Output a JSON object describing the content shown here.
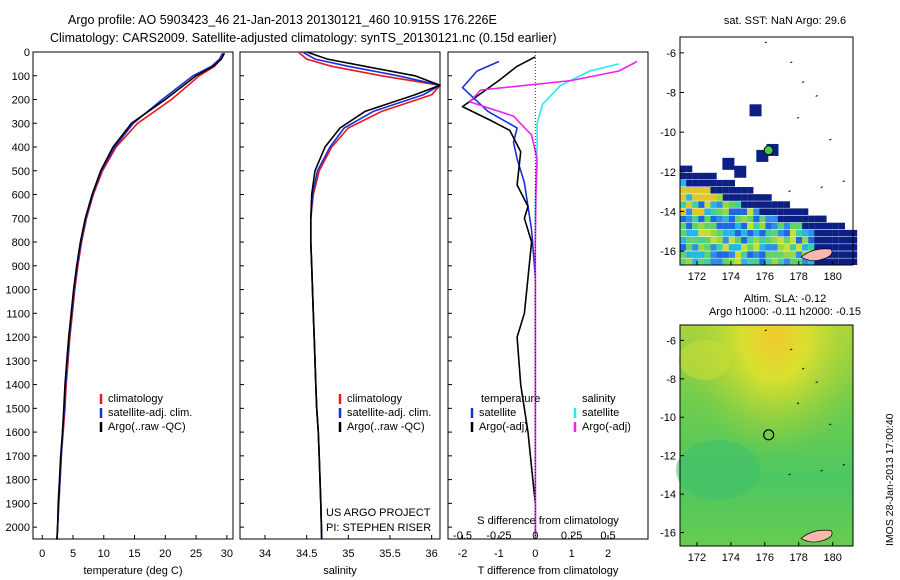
{
  "header": {
    "line1": "Argo profile: AO 5903423_46 21-Jan-2013 20130121_460 10.915S 176.226E",
    "line2": "Climatology: CARS2009. Satellite-adjusted climatology: synTS_20130121.nc (0.15d earlier)"
  },
  "colors": {
    "climatology": "#e8181e",
    "satellite": "#1c2fd6",
    "argo": "#000000",
    "sat_salinity": "#2ee6ee",
    "argo_salinity_adj": "#ee22ee"
  },
  "depth_ticks": [
    "0",
    "100",
    "200",
    "300",
    "400",
    "500",
    "600",
    "700",
    "800",
    "900",
    "1000",
    "1100",
    "1200",
    "1300",
    "1400",
    "1500",
    "1600",
    "1700",
    "1800",
    "1900",
    "2000"
  ],
  "chart_data": [
    {
      "type": "line",
      "xlabel": "temperature (deg C)",
      "xlim": [
        -1.5,
        31
      ],
      "ylim": [
        2050,
        0
      ],
      "xticks": [
        "0",
        "5",
        "10",
        "15",
        "20",
        "25",
        "30"
      ],
      "legend": [
        "climatology",
        "satellite-adj. clim.",
        "Argo(..raw -QC)"
      ],
      "series": [
        {
          "name": "climatology",
          "color": "climatology",
          "x": [
            29.5,
            29.0,
            28.0,
            25.5,
            21.0,
            15.5,
            12.0,
            9.8,
            8.3,
            7.2,
            6.4,
            5.8,
            5.3,
            4.9,
            4.5,
            4.2,
            3.9,
            3.7,
            3.4,
            3.1,
            2.9,
            2.7,
            2.5,
            2.4,
            2.3,
            2.3
          ],
          "y": [
            5,
            30,
            60,
            100,
            200,
            300,
            400,
            500,
            600,
            700,
            800,
            900,
            1000,
            1100,
            1200,
            1300,
            1400,
            1500,
            1600,
            1700,
            1800,
            1900,
            2000,
            2050,
            2060,
            2080
          ]
        },
        {
          "name": "satellite-adj. clim.",
          "color": "satellite",
          "x": [
            29.3,
            28.8,
            27.5,
            24.5,
            19.5,
            14.8,
            11.8,
            9.6,
            8.2,
            7.1,
            6.3,
            5.7,
            5.2,
            4.8,
            4.4,
            4.1,
            3.8,
            3.6,
            3.3,
            3.1,
            2.9,
            2.7,
            2.5,
            2.4,
            2.3
          ],
          "y": [
            5,
            30,
            60,
            100,
            200,
            300,
            400,
            500,
            600,
            700,
            800,
            900,
            1000,
            1100,
            1200,
            1300,
            1400,
            1500,
            1600,
            1700,
            1800,
            1900,
            2000,
            2050,
            2080
          ]
        },
        {
          "name": "Argo(..raw -QC)",
          "color": "argo",
          "x": [
            29.6,
            29.1,
            27.8,
            25.0,
            20.0,
            14.5,
            11.5,
            9.5,
            8.1,
            7.0,
            6.2,
            5.6,
            5.1,
            4.7,
            4.3,
            4.0,
            3.7,
            3.5,
            3.3,
            3.0,
            2.8,
            2.6,
            2.5,
            2.4,
            2.3
          ],
          "y": [
            5,
            30,
            60,
            100,
            200,
            300,
            400,
            500,
            600,
            700,
            800,
            900,
            1000,
            1100,
            1200,
            1300,
            1400,
            1500,
            1600,
            1700,
            1800,
            1900,
            2000,
            2050,
            2080
          ]
        }
      ]
    },
    {
      "type": "line",
      "xlabel": "salinity",
      "xlim": [
        33.7,
        36.1
      ],
      "ylim": [
        2050,
        0
      ],
      "xticks": [
        "34",
        "34.5",
        "35",
        "35.5",
        "36"
      ],
      "legend": [
        "climatology",
        "satellite-adj. clim.",
        "Argo(..raw -QC)"
      ],
      "annotations": [
        "US ARGO PROJECT",
        "PI: STEPHEN RISER"
      ],
      "series": [
        {
          "name": "climatology",
          "color": "climatology",
          "x": [
            34.4,
            34.5,
            34.8,
            35.4,
            36.1,
            36.0,
            35.4,
            35.0,
            34.8,
            34.65,
            34.58,
            34.55,
            34.55,
            34.56,
            34.57,
            34.58,
            34.59,
            34.6,
            34.61,
            34.62,
            34.64,
            34.65,
            34.66,
            34.67,
            34.68
          ],
          "y": [
            0,
            30,
            60,
            100,
            140,
            180,
            250,
            320,
            400,
            500,
            600,
            700,
            800,
            900,
            1000,
            1100,
            1200,
            1300,
            1400,
            1500,
            1600,
            1700,
            1800,
            1900,
            2080
          ]
        },
        {
          "name": "satellite-adj. clim.",
          "color": "satellite",
          "x": [
            34.45,
            34.6,
            35.0,
            35.6,
            36.1,
            35.9,
            35.3,
            34.95,
            34.78,
            34.63,
            34.57,
            34.55,
            34.55,
            34.56,
            34.57,
            34.58,
            34.59,
            34.6,
            34.61,
            34.62,
            34.64,
            34.65,
            34.66,
            34.67,
            34.68
          ],
          "y": [
            0,
            30,
            60,
            100,
            140,
            180,
            250,
            320,
            400,
            500,
            600,
            700,
            800,
            900,
            1000,
            1100,
            1200,
            1300,
            1400,
            1500,
            1600,
            1700,
            1800,
            1900,
            2080
          ]
        },
        {
          "name": "Argo(..raw -QC)",
          "color": "argo",
          "x": [
            34.5,
            34.75,
            35.2,
            35.8,
            36.1,
            35.8,
            35.2,
            34.9,
            34.72,
            34.6,
            34.56,
            34.55,
            34.55,
            34.56,
            34.57,
            34.58,
            34.59,
            34.6,
            34.61,
            34.62,
            34.64,
            34.65,
            34.66,
            34.67,
            34.68
          ],
          "y": [
            0,
            30,
            60,
            100,
            140,
            180,
            250,
            320,
            400,
            500,
            600,
            700,
            800,
            900,
            1000,
            1100,
            1200,
            1300,
            1400,
            1500,
            1600,
            1700,
            1800,
            1900,
            2080
          ]
        }
      ]
    },
    {
      "type": "line",
      "xlabel": "T difference from climatology",
      "top_label": "S difference from climatology",
      "xlim": [
        -2.4,
        3.1
      ],
      "ylim": [
        2050,
        0
      ],
      "xticks": [
        "-2",
        "-1",
        "0",
        "1",
        "2"
      ],
      "top_xticks": [
        "-0.5",
        "-0.25",
        "0",
        "0.25",
        "0.5"
      ],
      "legend_temperature": [
        "temperature",
        "satellite",
        "Argo(-adj)"
      ],
      "legend_salinity": [
        "salinity",
        "satellite",
        "Argo(-adj)"
      ],
      "series": [
        {
          "name": "satellite",
          "color": "satellite",
          "x": [
            -1.0,
            -1.6,
            -2.0,
            -1.3,
            -0.5,
            -0.6,
            -0.5,
            -0.3,
            -0.2,
            -0.1,
            -0.05,
            0,
            0,
            0,
            0,
            0,
            0,
            0,
            0,
            0
          ],
          "y": [
            40,
            80,
            150,
            250,
            320,
            380,
            450,
            550,
            650,
            750,
            850,
            950,
            1100,
            1300,
            1500,
            1650,
            1800,
            1900,
            2000,
            2080
          ]
        },
        {
          "name": "Argo(-adj)",
          "color": "argo",
          "x": [
            0.0,
            -0.5,
            -1.0,
            -2.0,
            -1.2,
            -0.7,
            -0.4,
            -0.5,
            -0.2,
            -0.3,
            -0.1,
            -0.2,
            -0.3,
            -0.5,
            -0.4,
            -0.2,
            -0.1,
            0,
            0,
            0
          ],
          "y": [
            20,
            60,
            120,
            230,
            290,
            330,
            420,
            560,
            650,
            700,
            800,
            950,
            1100,
            1200,
            1400,
            1600,
            1750,
            1900,
            2000,
            2080
          ]
        },
        {
          "name": "satellite",
          "color": "sat_salinity",
          "x": [
            2.3,
            1.5,
            0.7,
            0.2,
            0.05,
            0.05,
            0.02,
            0,
            0,
            0,
            0,
            0,
            0,
            0
          ],
          "y": [
            50,
            80,
            140,
            220,
            300,
            400,
            500,
            650,
            800,
            1000,
            1300,
            1600,
            1900,
            2080
          ]
        },
        {
          "name": "Argo(-adj)",
          "color": "argo_salinity_adj",
          "x": [
            2.8,
            2.3,
            1.0,
            -1.5,
            -1.8,
            -0.6,
            -0.1,
            0.05,
            0.02,
            0,
            0,
            0
          ],
          "y": [
            40,
            80,
            120,
            160,
            210,
            270,
            350,
            450,
            600,
            800,
            1200,
            2080
          ]
        }
      ]
    },
    {
      "type": "heatmap",
      "title": "sat. SST: NaN Argo: 29.6",
      "xticks": [
        "172",
        "174",
        "176",
        "178",
        "180"
      ],
      "yticks": [
        "-6",
        "-8",
        "-10",
        "-12",
        "-14",
        "-16"
      ],
      "xlim": [
        171,
        181.2
      ],
      "ylim": [
        -16.7,
        -5.2
      ],
      "marker": {
        "lon": 176.226,
        "lat": -10.915
      }
    },
    {
      "type": "heatmap",
      "title": "Altim. SLA: -0.12",
      "subtitle": "Argo h1000: -0.11 h2000: -0.15",
      "xticks": [
        "172",
        "174",
        "176",
        "178",
        "180"
      ],
      "yticks": [
        "-6",
        "-8",
        "-10",
        "-12",
        "-14",
        "-16"
      ],
      "xlim": [
        171,
        181.2
      ],
      "ylim": [
        -16.7,
        -5.2
      ],
      "marker": {
        "lon": 176.226,
        "lat": -10.915
      }
    }
  ],
  "credit": "IMOS 28-Jan-2013 17:00:40"
}
